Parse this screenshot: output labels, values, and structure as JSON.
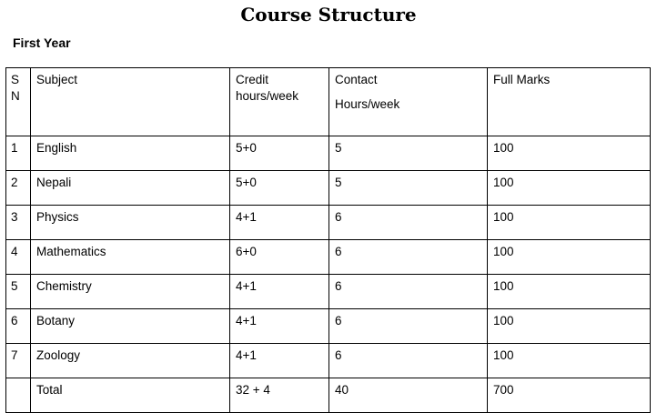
{
  "title": "Course Structure",
  "section": "First Year",
  "table": {
    "headers": {
      "sn_line1": "S",
      "sn_line2": "N",
      "subject": "Subject",
      "credit_line1": "Credit",
      "credit_line2": "hours/week",
      "contact_line1": "Contact",
      "contact_line2": "Hours/week",
      "full_marks": "Full Marks"
    },
    "rows": [
      {
        "sn": "1",
        "subject": "English",
        "credit": "5+0",
        "contact": "5",
        "marks": "100"
      },
      {
        "sn": "2",
        "subject": "Nepali",
        "credit": "5+0",
        "contact": "5",
        "marks": "100"
      },
      {
        "sn": "3",
        "subject": "Physics",
        "credit": "4+1",
        "contact": "6",
        "marks": "100"
      },
      {
        "sn": "4",
        "subject": "Mathematics",
        "credit": "6+0",
        "contact": "6",
        "marks": "100"
      },
      {
        "sn": "5",
        "subject": "Chemistry",
        "credit": "4+1",
        "contact": "6",
        "marks": "100"
      },
      {
        "sn": "6",
        "subject": "Botany",
        "credit": "4+1",
        "contact": "6",
        "marks": "100"
      },
      {
        "sn": "7",
        "subject": "Zoology",
        "credit": "4+1",
        "contact": "6",
        "marks": "100"
      }
    ],
    "total": {
      "label": "Total",
      "credit": "32 + 4",
      "contact": "40",
      "marks": "700"
    }
  }
}
